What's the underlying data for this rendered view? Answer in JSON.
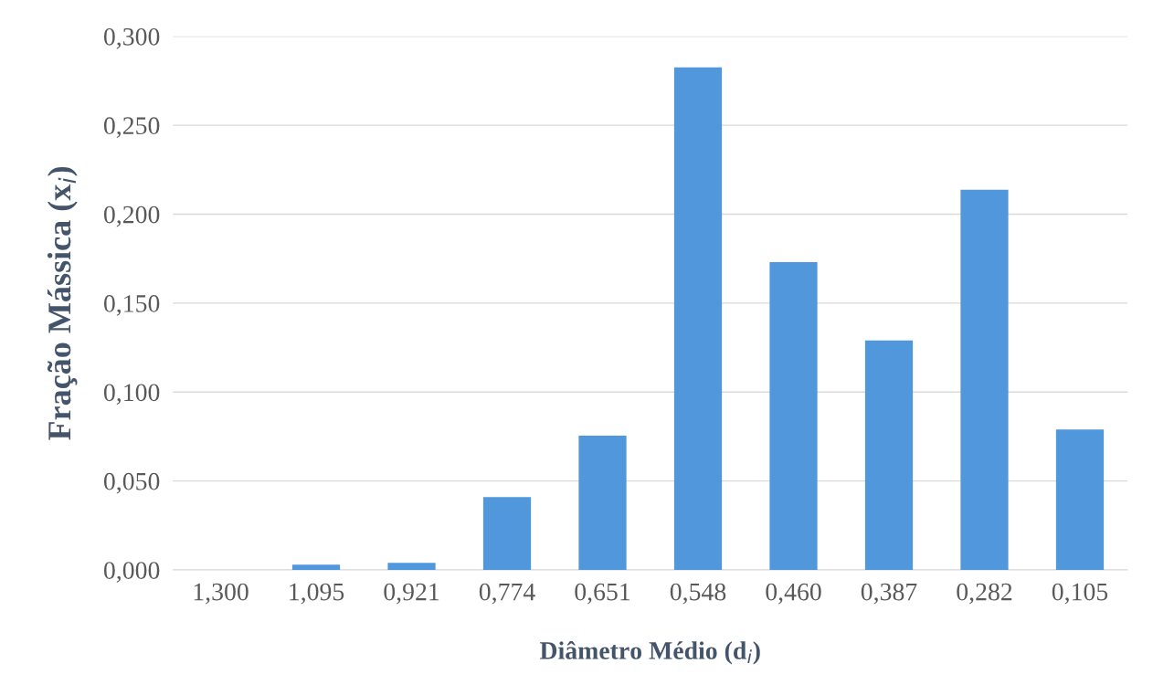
{
  "chart_data": {
    "type": "bar",
    "xlabel": "Diâmetro Médio (d$_{i}$)",
    "ylabel": "Fração Mássica (x$_{i}$)",
    "categories": [
      "1,300",
      "1,095",
      "0,921",
      "0,774",
      "0,651",
      "0,548",
      "0,460",
      "0,387",
      "0,282",
      "0,105"
    ],
    "values": [
      0,
      0.003,
      0.004,
      0.041,
      0.0755,
      0.2825,
      0.173,
      0.129,
      0.2137,
      0.079
    ],
    "color": "#5197dc",
    "ylim": [
      0,
      0.3
    ],
    "yticks": [
      {
        "value": 0,
        "label": "0,000"
      },
      {
        "value": 0.05,
        "label": "0,050"
      },
      {
        "value": 0.1,
        "label": "0,100"
      },
      {
        "value": 0.15,
        "label": "0,150"
      },
      {
        "value": 0.2,
        "label": "0,200"
      },
      {
        "value": 0.25,
        "label": "0,250"
      },
      {
        "value": 0.3,
        "label": "0,300"
      }
    ],
    "grid": "y"
  }
}
